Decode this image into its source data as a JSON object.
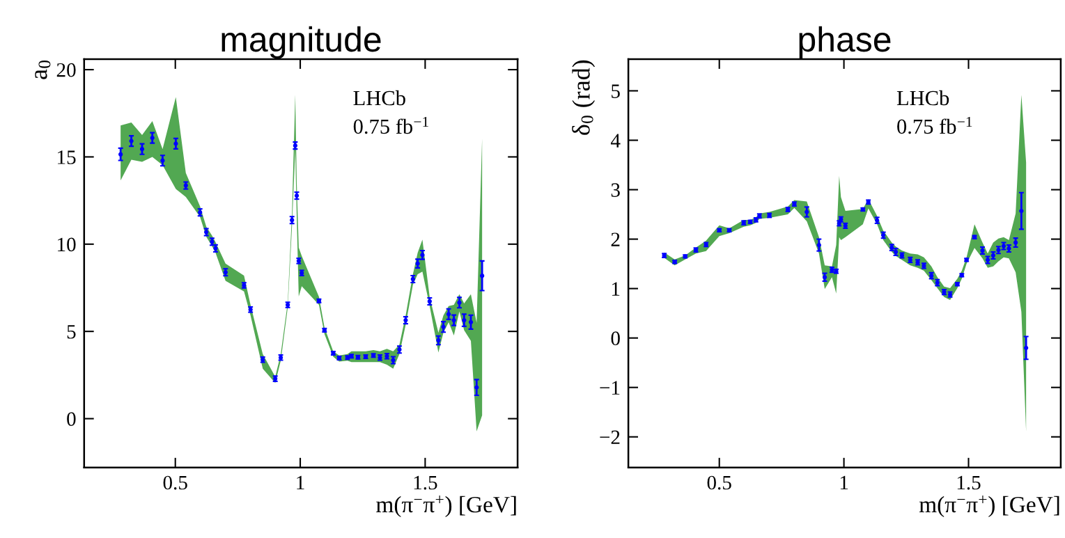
{
  "chart_data": [
    {
      "type": "scatter",
      "title": "magnitude",
      "ylabel": "a$_{0}$",
      "xlabel": "m(π$^{−}$π$^{+}$) [GeV]",
      "annotations": [
        "LHCb",
        "0.75 fb$^{−1}$"
      ],
      "marker": "circle",
      "grid": false,
      "legend": false,
      "xlim": [
        0.135,
        1.87
      ],
      "ylim": [
        -2.8,
        20.6
      ],
      "xticks": [
        0.5,
        1,
        1.5
      ],
      "yticks": [
        0,
        5,
        10,
        15,
        20
      ],
      "x": [
        0.281,
        0.324,
        0.367,
        0.408,
        0.449,
        0.502,
        0.542,
        0.599,
        0.624,
        0.647,
        0.661,
        0.701,
        0.775,
        0.801,
        0.85,
        0.9,
        0.922,
        0.95,
        0.967,
        0.98,
        0.986,
        0.994,
        1.006,
        1.075,
        1.097,
        1.132,
        1.156,
        1.189,
        1.205,
        1.231,
        1.262,
        1.293,
        1.319,
        1.347,
        1.372,
        1.397,
        1.422,
        1.451,
        1.47,
        1.489,
        1.518,
        1.553,
        1.573,
        1.594,
        1.615,
        1.637,
        1.656,
        1.683,
        1.706,
        1.728
      ],
      "series": [
        {
          "color": "#0000ff",
          "upper": [
            16.8,
            16.97,
            16.25,
            17.05,
            15.45,
            18.43,
            14.08,
            12.17,
            11.0,
            10.49,
            10.11,
            8.89,
            8.2,
            6.52,
            3.7,
            2.4,
            3.7,
            6.67,
            11.79,
            18.58,
            13.5,
            9.8,
            9.32,
            6.98,
            5.23,
            3.86,
            3.62,
            3.7,
            3.86,
            3.86,
            3.86,
            3.93,
            3.86,
            4.0,
            3.86,
            4.24,
            5.91,
            8.28,
            9.5,
            10.26,
            6.98,
            4.93,
            5.91,
            6.45,
            6.52,
            7.13,
            6.6,
            7.13,
            5.5,
            16.06
          ],
          "lower": [
            13.65,
            14.84,
            14.72,
            15.0,
            14.53,
            13.16,
            12.7,
            11.56,
            10.42,
            9.88,
            9.5,
            7.9,
            7.29,
            5.91,
            2.86,
            2.05,
            3.32,
            6.36,
            11.03,
            15.45,
            11.5,
            7.0,
            7.59,
            6.52,
            4.85,
            3.55,
            3.27,
            3.32,
            3.24,
            3.24,
            3.24,
            3.24,
            3.24,
            3.09,
            2.86,
            3.7,
            5.38,
            7.67,
            8.28,
            8.43,
            6.45,
            3.79,
            4.93,
            5.53,
            4.77,
            6.14,
            5.07,
            4.46,
            -0.73,
            0.19
          ],
          "values": [
            15.15,
            15.91,
            15.45,
            16.09,
            14.79,
            15.76,
            13.36,
            11.82,
            10.69,
            10.14,
            9.76,
            8.39,
            7.64,
            6.25,
            3.38,
            2.29,
            3.5,
            6.52,
            11.38,
            15.65,
            12.78,
            9.04,
            8.35,
            6.75,
            5.07,
            3.75,
            3.47,
            3.5,
            3.58,
            3.52,
            3.55,
            3.62,
            3.5,
            3.58,
            3.35,
            3.96,
            5.64,
            8.0,
            8.89,
            9.38,
            6.72,
            4.49,
            5.26,
            5.99,
            5.64,
            6.65,
            5.64,
            5.53,
            1.79,
            8.19
          ],
          "errors": [
            0.35,
            0.3,
            0.3,
            0.3,
            0.3,
            0.3,
            0.2,
            0.2,
            0.2,
            0.2,
            0.2,
            0.2,
            0.15,
            0.15,
            0.15,
            0.15,
            0.15,
            0.15,
            0.2,
            0.2,
            0.2,
            0.15,
            0.15,
            0.1,
            0.1,
            0.1,
            0.1,
            0.1,
            0.1,
            0.1,
            0.1,
            0.1,
            0.15,
            0.15,
            0.2,
            0.2,
            0.2,
            0.2,
            0.25,
            0.25,
            0.2,
            0.25,
            0.3,
            0.3,
            0.3,
            0.3,
            0.35,
            0.4,
            0.45,
            0.85
          ]
        }
      ]
    },
    {
      "type": "scatter",
      "title": "phase",
      "ylabel": "δ$_{0}$ (rad)",
      "xlabel": "m(π$^{−}$π$^{+}$) [GeV]",
      "annotations": [
        "LHCb",
        "0.75 fb$^{−1}$"
      ],
      "marker": "circle",
      "grid": false,
      "legend": false,
      "xlim": [
        0.135,
        1.87
      ],
      "ylim": [
        -2.62,
        5.64
      ],
      "xticks": [
        0.5,
        1,
        1.5
      ],
      "yticks": [
        {
          "value": -2,
          "label": "−2"
        },
        {
          "value": -1,
          "label": "−1"
        },
        0,
        1,
        2,
        3,
        4,
        5
      ],
      "x": [
        0.279,
        0.321,
        0.363,
        0.406,
        0.447,
        0.5,
        0.54,
        0.598,
        0.624,
        0.647,
        0.661,
        0.701,
        0.775,
        0.801,
        0.851,
        0.9,
        0.923,
        0.952,
        0.969,
        0.981,
        0.988,
        1.006,
        1.076,
        1.098,
        1.133,
        1.158,
        1.192,
        1.208,
        1.233,
        1.266,
        1.296,
        1.321,
        1.351,
        1.375,
        1.402,
        1.426,
        1.455,
        1.473,
        1.492,
        1.524,
        1.556,
        1.577,
        1.599,
        1.62,
        1.641,
        1.662,
        1.689,
        1.712,
        1.731
      ],
      "series": [
        {
          "color": "#0000ff",
          "upper": [
            1.73,
            1.59,
            1.67,
            1.83,
            1.97,
            2.28,
            2.22,
            2.39,
            2.39,
            2.44,
            2.52,
            2.55,
            2.66,
            2.79,
            2.76,
            2.04,
            1.47,
            1.45,
            1.88,
            3.28,
            2.85,
            2.57,
            2.61,
            2.81,
            2.47,
            2.17,
            1.93,
            1.85,
            1.77,
            1.71,
            1.69,
            1.63,
            1.45,
            1.23,
            1.04,
            1.01,
            1.2,
            1.36,
            1.63,
            2.3,
            1.93,
            1.71,
            1.93,
            2.01,
            2.04,
            1.98,
            2.52,
            4.92,
            3.55
          ],
          "lower": [
            1.62,
            1.47,
            1.59,
            1.71,
            1.76,
            2.06,
            2.12,
            2.25,
            2.28,
            2.33,
            2.41,
            2.43,
            2.5,
            2.63,
            2.36,
            1.71,
            0.99,
            1.23,
            0.9,
            2.04,
            1.98,
            2.04,
            2.3,
            2.62,
            2.3,
            1.98,
            1.74,
            1.66,
            1.58,
            1.47,
            1.42,
            1.36,
            1.17,
            1.01,
            0.83,
            0.77,
            1.01,
            1.2,
            1.5,
            1.82,
            1.61,
            1.42,
            1.45,
            1.55,
            1.63,
            1.61,
            1.33,
            0.53,
            -1.89
          ],
          "values": [
            1.67,
            1.54,
            1.65,
            1.78,
            1.89,
            2.18,
            2.18,
            2.33,
            2.35,
            2.39,
            2.47,
            2.48,
            2.6,
            2.71,
            2.55,
            1.88,
            1.23,
            1.38,
            1.35,
            2.32,
            2.4,
            2.27,
            2.6,
            2.75,
            2.38,
            2.08,
            1.83,
            1.74,
            1.67,
            1.58,
            1.53,
            1.46,
            1.26,
            1.12,
            0.93,
            0.88,
            1.09,
            1.27,
            1.58,
            2.04,
            1.77,
            1.58,
            1.67,
            1.78,
            1.86,
            1.81,
            1.93,
            2.57,
            -0.2
          ],
          "errors": [
            0.04,
            0.03,
            0.03,
            0.04,
            0.04,
            0.03,
            0.03,
            0.04,
            0.03,
            0.04,
            0.04,
            0.04,
            0.04,
            0.04,
            0.1,
            0.12,
            0.08,
            0.05,
            0.04,
            0.05,
            0.05,
            0.05,
            0.03,
            0.04,
            0.06,
            0.06,
            0.06,
            0.07,
            0.05,
            0.05,
            0.05,
            0.05,
            0.06,
            0.06,
            0.05,
            0.05,
            0.03,
            0.03,
            0.03,
            0.03,
            0.07,
            0.07,
            0.07,
            0.07,
            0.07,
            0.07,
            0.09,
            0.37,
            0.23
          ]
        }
      ]
    }
  ]
}
